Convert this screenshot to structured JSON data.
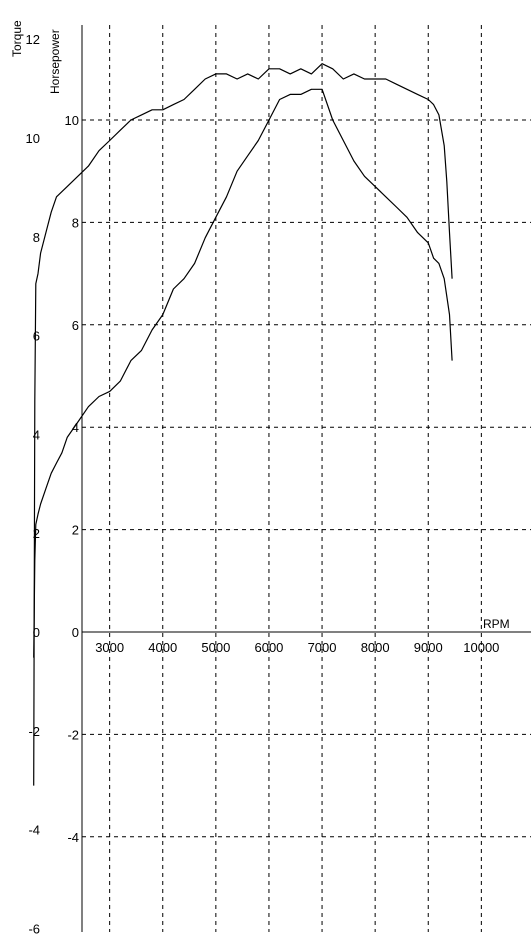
{
  "chart_data": {
    "type": "line",
    "x_axis": {
      "label": "RPM",
      "ticks": [
        3000,
        4000,
        5000,
        6000,
        7000,
        8000,
        9000,
        10000
      ],
      "range": [
        1500,
        10500
      ]
    },
    "torque_axis": {
      "label": "Torque",
      "ticks": [
        12,
        10,
        8,
        6,
        4,
        2,
        0,
        -2,
        -4,
        -6
      ],
      "range": [
        -6,
        12.2
      ]
    },
    "hp_axis": {
      "label": "Horsepower",
      "ticks": [
        10,
        8,
        6,
        4,
        2,
        0,
        -2,
        -4
      ],
      "range": [
        -5.95,
        12.25
      ]
    },
    "grid": true,
    "series": [
      {
        "axis": "hp",
        "x": [
          1570,
          1590,
          1610,
          1650,
          1700,
          1800,
          1900,
          2000,
          2100,
          2200,
          2400,
          2600,
          2800,
          3000,
          3200,
          3400,
          3600,
          3800,
          4000,
          4200,
          4400,
          4600,
          4800,
          5000,
          5200,
          5400,
          5600,
          5800,
          6000,
          6200,
          6400,
          6600,
          6800,
          7000,
          7200,
          7400,
          7600,
          7800,
          8000,
          8200,
          8400,
          8600,
          8800,
          9000,
          9100,
          9200,
          9300,
          9400,
          9450
        ],
        "y": [
          -0.5,
          1.4,
          2.1,
          2.3,
          2.5,
          2.8,
          3.1,
          3.3,
          3.5,
          3.8,
          4.1,
          4.4,
          4.6,
          4.7,
          4.9,
          5.3,
          5.5,
          5.9,
          6.2,
          6.7,
          6.9,
          7.2,
          7.7,
          8.1,
          8.5,
          9.0,
          9.3,
          9.6,
          10.0,
          10.4,
          10.5,
          10.5,
          10.6,
          10.6,
          10.0,
          9.6,
          9.2,
          8.9,
          8.7,
          8.5,
          8.3,
          8.1,
          7.8,
          7.6,
          7.3,
          7.2,
          6.9,
          6.2,
          5.3
        ]
      },
      {
        "axis": "hp",
        "x": [
          1570,
          1590,
          1610,
          1650,
          1700,
          1800,
          1900,
          2000,
          2200,
          2400,
          2600,
          2800,
          3000,
          3200,
          3400,
          3600,
          3800,
          4000,
          4200,
          4400,
          4600,
          4800,
          5000,
          5200,
          5400,
          5600,
          5800,
          6000,
          6200,
          6400,
          6600,
          6800,
          7000,
          7200,
          7400,
          7600,
          7800,
          8000,
          8200,
          8400,
          8600,
          8800,
          9000,
          9100,
          9200,
          9300,
          9350,
          9400,
          9450
        ],
        "y": [
          -3.0,
          4.5,
          6.8,
          7.0,
          7.4,
          7.8,
          8.2,
          8.5,
          8.7,
          8.9,
          9.1,
          9.4,
          9.6,
          9.8,
          10.0,
          10.1,
          10.2,
          10.2,
          10.3,
          10.4,
          10.6,
          10.8,
          10.9,
          10.9,
          10.8,
          10.9,
          10.8,
          11.0,
          11.0,
          10.9,
          11.0,
          10.9,
          11.1,
          11.0,
          10.8,
          10.9,
          10.8,
          10.8,
          10.8,
          10.7,
          10.6,
          10.5,
          10.4,
          10.3,
          10.1,
          9.5,
          8.8,
          7.8,
          6.9
        ]
      }
    ]
  }
}
